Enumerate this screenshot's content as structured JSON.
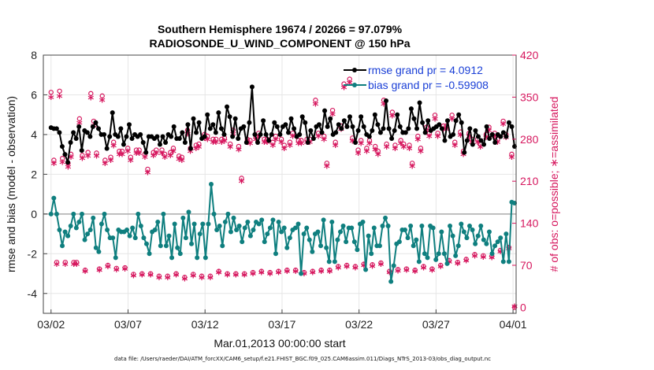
{
  "chart_data": {
    "type": "line",
    "title_line1": "Southern Hemisphere 19674 / 20266 = 97.079%",
    "title_line2": "RADIOSONDE_U_WIND_COMPONENT @ 150 hPa",
    "ylabel_left": "rmse and bias (model - observation)",
    "ylabel_right": "# of obs: o=possible; ∗=assimilated",
    "xlabel": "Mar.01,2013 00:00:00 start",
    "footnote": "data file: /Users/raeder/DAI/ATM_forcXX/CAM6_setup/f.e21.FHIST_BGC.f09_025.CAM6assim.011/Diags_NTrS_2013-03/obs_diag_output.nc",
    "x_range_days": [
      0.5,
      31.2
    ],
    "ylim_left": [
      -5,
      8
    ],
    "ylim_right": [
      -10,
      420
    ],
    "yticks_left": [
      "-4",
      "-2",
      "0",
      "2",
      "4",
      "6",
      "8"
    ],
    "yticks_left_values": [
      -4,
      -2,
      0,
      2,
      4,
      6,
      8
    ],
    "yticks_right": [
      "0",
      "70",
      "140",
      "210",
      "280",
      "350",
      "420"
    ],
    "yticks_right_values": [
      0,
      70,
      140,
      210,
      280,
      350,
      420
    ],
    "xticks": [
      "03/02",
      "03/07",
      "03/12",
      "03/17",
      "03/22",
      "03/27",
      "04/01"
    ],
    "xticks_values": [
      1,
      6,
      11,
      16,
      21,
      26,
      31
    ],
    "colors": {
      "rmse": "#000000",
      "bias": "#0f7f7f",
      "obs": "#d6175e",
      "zero": "#aaaaaa",
      "legend_text": "#1a3fd6"
    },
    "series": [
      {
        "name": "rmse grand pr = 4.0912",
        "values": [
          4.35,
          4.3,
          4.3,
          4.1,
          3.4,
          3.0,
          2.6,
          3.6,
          4.1,
          3.8,
          4.4,
          3.2,
          4.2,
          4.1,
          3.9,
          4.4,
          4.6,
          4.3,
          4.0,
          4.0,
          3.3,
          3.9,
          5.1,
          4.0,
          3.9,
          4.3,
          3.5,
          3.9,
          4.5,
          3.8,
          4.0,
          3.9,
          4.0,
          3.6,
          3.1,
          3.9,
          3.9,
          3.8,
          3.9,
          3.5,
          3.9,
          3.6,
          4.0,
          3.9,
          4.4,
          3.8,
          3.8,
          4.1,
          3.6,
          4.5,
          3.3,
          4.8,
          4.1,
          4.6,
          3.8,
          3.9,
          5.0,
          4.3,
          4.5,
          4.1,
          5.1,
          4.3,
          4.0,
          5.4,
          4.9,
          3.9,
          4.8,
          3.8,
          4.3,
          4.4,
          3.6,
          4.6,
          6.4,
          4.0,
          3.6,
          4.0,
          4.7,
          4.0,
          3.7,
          4.0,
          4.6,
          4.4,
          4.0,
          4.4,
          4.5,
          4.1,
          4.8,
          4.3,
          3.9,
          4.0,
          4.9,
          4.6,
          3.6,
          4.2,
          3.8,
          4.4,
          4.5,
          4.1,
          5.2,
          4.4,
          4.8,
          4.0,
          4.1,
          4.5,
          4.3,
          4.7,
          4.4,
          4.9,
          4.4,
          3.6,
          4.2,
          4.9,
          4.4,
          4.0,
          3.9,
          4.2,
          5.0,
          4.5,
          4.1,
          4.3,
          5.7,
          4.3,
          3.8,
          4.2,
          5.0,
          4.4,
          4.1,
          4.1,
          4.3,
          5.3,
          4.8,
          4.3,
          5.6,
          4.6,
          4.1,
          4.7,
          4.2,
          4.3,
          4.4,
          4.5,
          4.3,
          3.7,
          4.7,
          3.9,
          4.0,
          4.7,
          5.0,
          4.6,
          3.1,
          3.7,
          4.3,
          3.5,
          4.2,
          3.9,
          3.7,
          3.5,
          4.4,
          3.8,
          4.0,
          3.6,
          4.0,
          3.9,
          4.1,
          3.9,
          4.6,
          4.4,
          3.4
        ]
      },
      {
        "name": "bias grand pr = -0.59908",
        "values": [
          0.0,
          0.8,
          0.0,
          -0.8,
          -1.6,
          -0.9,
          -1.1,
          -0.6,
          0.0,
          -0.7,
          -0.4,
          0.0,
          -1.3,
          -1.0,
          -0.8,
          -0.2,
          -1.7,
          -1.9,
          -0.5,
          0.0,
          -0.8,
          -1.2,
          -1.2,
          -2.2,
          -0.8,
          -0.9,
          -0.9,
          -0.8,
          -1.1,
          -0.7,
          -1.2,
          0.0,
          -0.6,
          -1.2,
          -1.5,
          -2.0,
          -0.9,
          -0.8,
          -0.4,
          -1.6,
          0.0,
          -1.6,
          -1.1,
          -2.2,
          -0.5,
          -1.7,
          -2.0,
          -0.2,
          -1.2,
          0.1,
          -1.5,
          -0.5,
          -2.2,
          -1.0,
          -0.5,
          -2.2,
          -0.5,
          1.5,
          0.0,
          -0.8,
          -0.6,
          -1.6,
          -0.4,
          0.0,
          -0.9,
          -0.2,
          -0.8,
          -0.6,
          -1.4,
          -0.7,
          -0.4,
          -1.1,
          -0.8,
          -0.4,
          -0.5,
          -0.3,
          -1.4,
          -1.0,
          -0.7,
          -0.3,
          -2.0,
          -0.4,
          -0.9,
          -0.7,
          -1.7,
          -1.2,
          -0.8,
          -0.7,
          -0.5,
          -3.0,
          -1.0,
          -0.7,
          -1.3,
          -1.9,
          -1.0,
          -0.9,
          -1.6,
          -0.3,
          -1.7,
          -2.4,
          -0.4,
          -2.4,
          -1.3,
          -0.9,
          -0.6,
          -1.4,
          -0.7,
          -0.7,
          -1.4,
          -1.8,
          -0.5,
          -0.4,
          -2.8,
          -1.1,
          -2.0,
          -0.7,
          -1.6,
          -1.6,
          -0.6,
          -0.2,
          -0.6,
          -3.4,
          -2.6,
          -1.5,
          -1.4,
          -0.8,
          -0.8,
          -1.2,
          -0.6,
          -1.6,
          -1.3,
          -2.4,
          -0.6,
          -2.0,
          -2.2,
          -0.6,
          -0.7,
          -2.3,
          -2.0,
          -0.9,
          -2.0,
          -2.5,
          -0.6,
          -1.1,
          -2.1,
          -1.6,
          -0.5,
          -0.9,
          -1.2,
          -0.6,
          -0.8,
          -1.5,
          -1.1,
          -0.6,
          -1.3,
          -1.5,
          -0.9,
          -2.0,
          -1.6,
          -1.4,
          -1.2,
          -2.4,
          -1.0,
          -2.4,
          0.6,
          0.55
        ]
      },
      {
        "name": "possible observations (o)",
        "values": [
          358,
          245,
          75,
          360,
          248,
          75,
          240,
          255,
          75,
          75,
          314,
          253,
          62,
          258,
          356,
          310,
          257,
          64,
          352,
          245,
          70,
          250,
          275,
          65,
          260,
          260,
          66,
          265,
          250,
          55,
          262,
          262,
          56,
          255,
          230,
          56,
          258,
          262,
          52,
          262,
          255,
          52,
          258,
          265,
          56,
          252,
          250,
          50,
          295,
          265,
          55,
          270,
          272,
          52,
          288,
          285,
          52,
          280,
          280,
          60,
          280,
          282,
          56,
          272,
          295,
          56,
          268,
          215,
          56,
          280,
          278,
          58,
          285,
          290,
          60,
          280,
          280,
          58,
          275,
          285,
          60,
          280,
          270,
          62,
          275,
          290,
          62,
          278,
          278,
          58,
          280,
          280,
          60,
          345,
          290,
          62,
          285,
          240,
          62,
          328,
          275,
          68,
          302,
          372,
          70,
          380,
          282,
          68,
          262,
          278,
          72,
          265,
          278,
          71,
          268,
          260,
          74,
          345,
          272,
          60,
          325,
          270,
          63,
          278,
          272,
          64,
          270,
          240,
          62,
          285,
          265,
          68,
          300,
          290,
          64,
          320,
          290,
          70,
          302,
          302,
          78,
          320,
          275,
          75,
          292,
          260,
          80,
          290,
          280,
          88,
          280,
          272,
          86,
          288,
          300,
          85,
          290,
          280,
          95,
          310,
          288,
          100,
          255,
          0
        ]
      },
      {
        "name": "assimilated observations (∗)",
        "values": [
          348,
          238,
          70,
          350,
          240,
          70,
          232,
          248,
          70,
          70,
          305,
          246,
          58,
          250,
          347,
          301,
          250,
          60,
          343,
          238,
          66,
          243,
          267,
          61,
          253,
          253,
          62,
          258,
          243,
          51,
          255,
          255,
          52,
          248,
          223,
          52,
          251,
          255,
          48,
          255,
          248,
          48,
          251,
          258,
          52,
          245,
          243,
          46,
          287,
          258,
          51,
          263,
          265,
          48,
          280,
          278,
          48,
          273,
          273,
          56,
          273,
          275,
          52,
          265,
          287,
          52,
          261,
          208,
          52,
          273,
          271,
          54,
          278,
          283,
          56,
          273,
          273,
          54,
          268,
          278,
          56,
          273,
          263,
          58,
          268,
          283,
          58,
          271,
          271,
          54,
          273,
          273,
          56,
          337,
          283,
          58,
          278,
          233,
          58,
          320,
          268,
          64,
          295,
          364,
          66,
          372,
          275,
          64,
          255,
          271,
          68,
          258,
          271,
          67,
          261,
          253,
          70,
          337,
          265,
          56,
          317,
          263,
          59,
          271,
          265,
          60,
          263,
          233,
          58,
          278,
          258,
          64,
          293,
          283,
          60,
          312,
          283,
          66,
          295,
          295,
          74,
          312,
          268,
          71,
          285,
          253,
          76,
          283,
          273,
          84,
          273,
          265,
          82,
          281,
          293,
          81,
          283,
          273,
          91,
          303,
          281,
          96,
          248,
          0
        ]
      }
    ],
    "legend": {
      "placement": "top-right"
    }
  }
}
